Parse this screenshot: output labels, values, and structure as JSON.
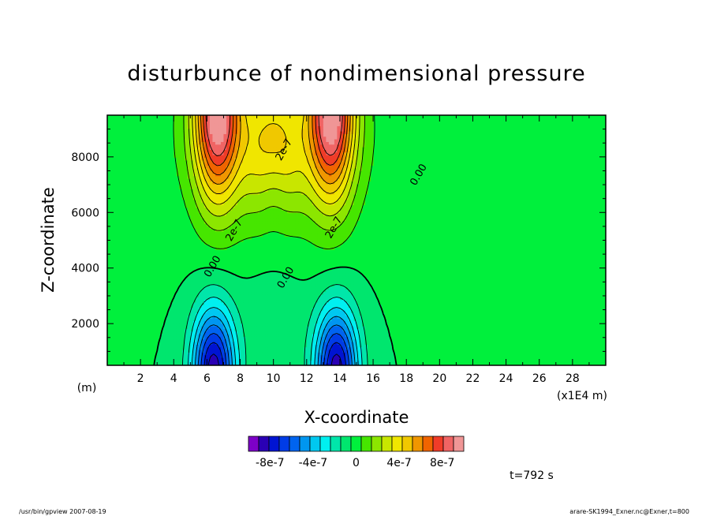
{
  "chart_data": {
    "type": "heatmap",
    "title": "disturbunce of nondimensional pressure",
    "xlabel": "X-coordinate",
    "ylabel": "Z-coordinate",
    "x_unit_label": "(m)",
    "x_scale_label": "(x1E4 m)",
    "xlim": [
      0,
      30
    ],
    "ylim": [
      500,
      9500
    ],
    "x_ticks": [
      2,
      4,
      6,
      8,
      10,
      12,
      14,
      16,
      18,
      20,
      22,
      24,
      26,
      28
    ],
    "y_ticks": [
      2000,
      4000,
      6000,
      8000
    ],
    "contour_levels": [
      -1e-06,
      -9e-07,
      -8e-07,
      -7e-07,
      -6e-07,
      -5e-07,
      -4e-07,
      -3e-07,
      -2e-07,
      -1e-07,
      0,
      1e-07,
      2e-07,
      3e-07,
      4e-07,
      5e-07,
      6e-07,
      7e-07,
      8e-07,
      9e-07,
      1e-06
    ],
    "colorbar_colors": [
      "#7d00c8",
      "#2a00b4",
      "#0014d2",
      "#003ce6",
      "#0064f0",
      "#0096f0",
      "#00c8f0",
      "#00f0f0",
      "#00e6aa",
      "#00e66e",
      "#00f03c",
      "#46e600",
      "#8ce600",
      "#c8e600",
      "#f0e600",
      "#f0c800",
      "#f09600",
      "#f06400",
      "#f03c28",
      "#f06464",
      "#f09696"
    ],
    "colorbar_labels": [
      "-8e-7",
      "-4e-7",
      "0",
      "4e-7",
      "8e-7"
    ],
    "colorbar_label_values": [
      -8e-07,
      -4e-07,
      0,
      4e-07,
      8e-07
    ],
    "contour_labels": [
      {
        "text": "0.00",
        "x": 18.9,
        "z": 7300
      },
      {
        "text": "0.00",
        "x": 6.5,
        "z": 4000
      },
      {
        "text": "0.00",
        "x": 10.9,
        "z": 3600
      },
      {
        "text": "2e-7",
        "x": 7.8,
        "z": 5300
      },
      {
        "text": "2e-7",
        "x": 10.8,
        "z": 8200
      },
      {
        "text": "2e-7",
        "x": 13.8,
        "z": 5400
      }
    ],
    "time_label": "t=792 s"
  },
  "footer": {
    "left": "/usr/bin/gpview   2007-08-19",
    "right": "arare-SK1994_Exner.nc@Exner,t=800"
  }
}
